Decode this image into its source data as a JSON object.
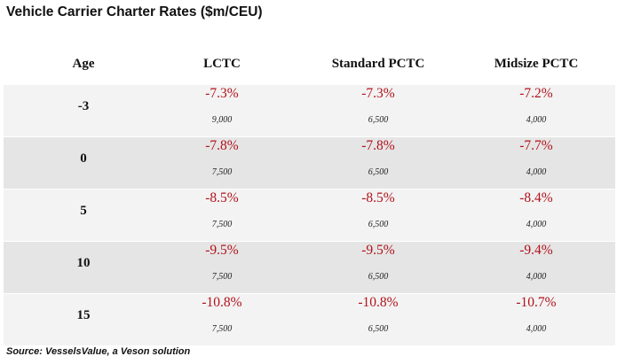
{
  "chart_data": {
    "type": "table",
    "title": "Vehicle Carrier Charter Rates ($m/CEU)",
    "columns": [
      "Age",
      "LCTC",
      "Standard PCTC",
      "Midsize PCTC"
    ],
    "rows": [
      {
        "age": "-3",
        "cells": [
          {
            "pct": "-7.3%",
            "ceu": "9,000"
          },
          {
            "pct": "-7.3%",
            "ceu": "6,500"
          },
          {
            "pct": "-7.2%",
            "ceu": "4,000"
          }
        ]
      },
      {
        "age": "0",
        "cells": [
          {
            "pct": "-7.8%",
            "ceu": "7,500"
          },
          {
            "pct": "-7.8%",
            "ceu": "6,500"
          },
          {
            "pct": "-7.7%",
            "ceu": "4,000"
          }
        ]
      },
      {
        "age": "5",
        "cells": [
          {
            "pct": "-8.5%",
            "ceu": "7,500"
          },
          {
            "pct": "-8.5%",
            "ceu": "6,500"
          },
          {
            "pct": "-8.4%",
            "ceu": "4,000"
          }
        ]
      },
      {
        "age": "10",
        "cells": [
          {
            "pct": "-9.5%",
            "ceu": "7,500"
          },
          {
            "pct": "-9.5%",
            "ceu": "6,500"
          },
          {
            "pct": "-9.4%",
            "ceu": "4,000"
          }
        ]
      },
      {
        "age": "15",
        "cells": [
          {
            "pct": "-10.8%",
            "ceu": "7,500"
          },
          {
            "pct": "-10.8%",
            "ceu": "6,500"
          },
          {
            "pct": "-10.7%",
            "ceu": "4,000"
          }
        ]
      }
    ],
    "source": "Source: VesselsValue, a Veson solution",
    "colors": {
      "change": "#b2121b",
      "row_light": "#f3f3f3",
      "row_dark": "#e5e5e5"
    }
  }
}
